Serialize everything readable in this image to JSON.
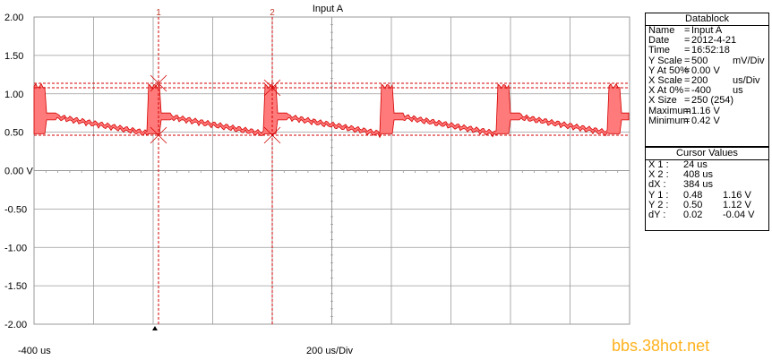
{
  "scope": {
    "title": "Input A",
    "y_ticks": [
      "2.00",
      "1.50",
      "1.00",
      "0.50",
      "0.00 V",
      "-0.50",
      "-1.00",
      "-1.50",
      "-2.00"
    ],
    "x_left_label": "-400 us",
    "x_center_label": "200 us/Div",
    "cursor_labels": [
      "1",
      "2"
    ],
    "colors": {
      "trace": "#ff7a7a",
      "trace_edge": "#d40000",
      "cursor": "#d40000",
      "grid": "#9a9a9a"
    }
  },
  "datablock": {
    "header": "Datablock",
    "rows": [
      {
        "label": "Name",
        "eq": "=",
        "value": "Input A",
        "unit": ""
      },
      {
        "label": "Date",
        "eq": "=",
        "value": "2012-4-21",
        "unit": ""
      },
      {
        "label": "Time",
        "eq": "=",
        "value": "16:52:18",
        "unit": ""
      },
      {
        "label": "Y Scale",
        "eq": "=",
        "value": "500",
        "unit": "mV/Div"
      },
      {
        "label": "Y At 50%",
        "eq": "=",
        "value": "0.00 V",
        "unit": ""
      },
      {
        "label": "X Scale",
        "eq": "=",
        "value": "200",
        "unit": "us/Div"
      },
      {
        "label": "X At 0%",
        "eq": "=",
        "value": "-400",
        "unit": "us"
      },
      {
        "label": "X Size",
        "eq": "=",
        "value": "250 (254)",
        "unit": ""
      },
      {
        "label": "Maximum",
        "eq": "=",
        "value": "1.16 V",
        "unit": ""
      },
      {
        "label": "Minimum",
        "eq": "=",
        "value": "0.42 V",
        "unit": ""
      }
    ]
  },
  "cursor_values": {
    "header": "Cursor Values",
    "rows": [
      {
        "label": "X 1 :",
        "a": "24 us",
        "b": ""
      },
      {
        "label": "X 2 :",
        "a": "408 us",
        "b": ""
      },
      {
        "label": "dX :",
        "a": "384 us",
        "b": ""
      },
      {
        "label": "Y 1 :",
        "a": "0.48",
        "b": "1.16 V"
      },
      {
        "label": "Y 2 :",
        "a": "0.50",
        "b": "1.12 V"
      },
      {
        "label": "dY :",
        "a": "0.02",
        "b": "-0.04 V"
      }
    ]
  },
  "watermark": "bbs.38hot.net"
}
